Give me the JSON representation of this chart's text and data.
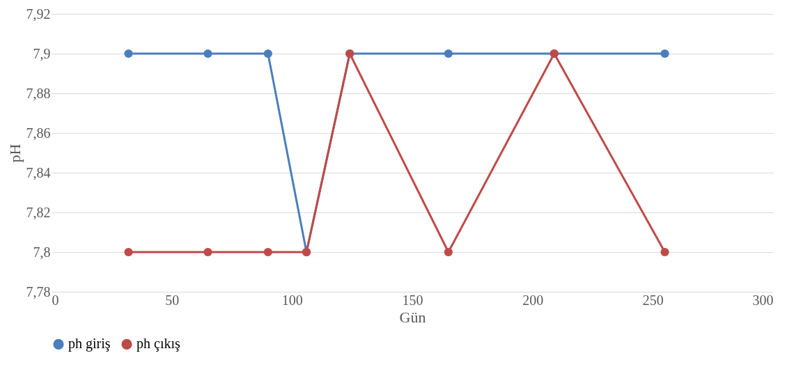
{
  "chart_data": {
    "type": "line",
    "xlabel": "Gün",
    "ylabel": "pH",
    "x": [
      32,
      65,
      90,
      106,
      124,
      165,
      209,
      255
    ],
    "series": [
      {
        "name": "ph giriş",
        "color": "#4a7ebb",
        "values": [
          7.9,
          7.9,
          7.9,
          7.8,
          7.9,
          7.9,
          7.9,
          7.9
        ]
      },
      {
        "name": "ph çıkış",
        "color": "#be4b48",
        "values": [
          7.8,
          7.8,
          7.8,
          7.8,
          7.9,
          7.8,
          7.9,
          7.8
        ]
      }
    ],
    "xlim": [
      0,
      300
    ],
    "xticks": [
      0,
      50,
      100,
      150,
      200,
      250,
      300
    ],
    "ylim": [
      7.78,
      7.92
    ],
    "yticks": [
      {
        "value": 7.78,
        "label": "7,78"
      },
      {
        "value": 7.8,
        "label": "7,8"
      },
      {
        "value": 7.82,
        "label": "7,82"
      },
      {
        "value": 7.84,
        "label": "7,84"
      },
      {
        "value": 7.86,
        "label": "7,86"
      },
      {
        "value": 7.88,
        "label": "7,88"
      },
      {
        "value": 7.9,
        "label": "7,9"
      },
      {
        "value": 7.92,
        "label": "7,92"
      }
    ],
    "grid": "y",
    "legend": "bottom",
    "marker": "circle",
    "line_style": "solid"
  }
}
